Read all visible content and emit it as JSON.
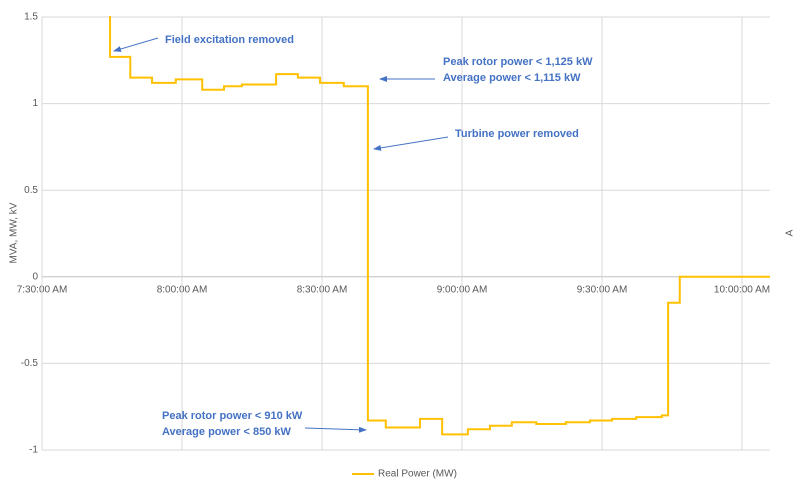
{
  "chart_data": {
    "type": "line",
    "step": true,
    "y_axis_label": "MVA, MW, kV",
    "y2_axis_label": "A",
    "xlim": [
      "7:30:00 AM",
      "10:06:00 AM"
    ],
    "xticks": [
      "7:30:00 AM",
      "8:00:00 AM",
      "8:30:00 AM",
      "9:00:00 AM",
      "9:30:00 AM",
      "10:00:00 AM"
    ],
    "ylim": [
      -1,
      1.5
    ],
    "yticks": [
      -1,
      -0.5,
      0,
      0.5,
      1,
      1.5
    ],
    "grid": true,
    "legend": "bottom",
    "x": [
      "7:44:25 AM",
      "7:44:35 AM",
      "7:48:55 AM",
      "7:53:35 AM",
      "7:58:40 AM",
      "8:04:20 AM",
      "8:09:00 AM",
      "8:12:50 AM",
      "8:20:10 AM",
      "8:24:50 AM",
      "8:29:35 AM",
      "8:34:40 AM",
      "8:39:50 AM",
      "8:43:40 AM",
      "8:51:00 AM",
      "8:55:45 AM",
      "9:01:15 AM",
      "9:06:00 AM",
      "9:10:40 AM",
      "9:15:55 AM",
      "9:22:15 AM",
      "9:27:25 AM",
      "9:32:10 AM",
      "9:37:20 AM",
      "9:42:50 AM",
      "9:44:10 AM",
      "9:46:40 AM",
      "10:06:00 AM"
    ],
    "series": [
      {
        "name": "Real Power (MW)",
        "color": "#FFC000",
        "values": [
          1.5,
          1.27,
          1.15,
          1.12,
          1.14,
          1.08,
          1.1,
          1.11,
          1.17,
          1.15,
          1.12,
          1.1,
          -0.83,
          -0.87,
          -0.82,
          -0.91,
          -0.88,
          -0.86,
          -0.84,
          -0.85,
          -0.84,
          -0.83,
          -0.82,
          -0.81,
          -0.8,
          -0.15,
          0,
          0
        ]
      }
    ],
    "annotations": [
      "Field excitation removed",
      "Peak rotor power < 1,125 kW",
      "Average power <  1,115 kW",
      "Turbine power removed",
      "Peak rotor power < 910 kW",
      "Average power <  850 kW"
    ]
  }
}
